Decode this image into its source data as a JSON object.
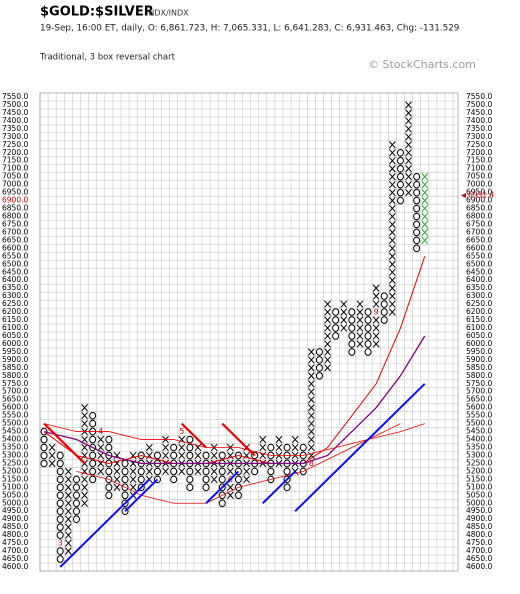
{
  "chart_data": {
    "type": "point-and-figure",
    "title": "$GOLD:$SILVER",
    "exchange": "INDX/INDX",
    "info": "19-Sep, 16:00 ET, daily, O: 6,861.723, H: 7,065.331, L: 6,641.283, C: 6,931.463, Chg: -131.529",
    "subtitle": "Traditional, 3 box reversal chart",
    "copyright": "© StockCharts.com",
    "box_size": 50,
    "x_color": "#000000",
    "o_color": "#000000",
    "marker_color": "#cc0000",
    "grid": true,
    "ylim": [
      4600,
      7550
    ],
    "yticks": [
      {
        "value": 4600,
        "label": "4600.0"
      },
      {
        "value": 4650,
        "label": "4650.0"
      },
      {
        "value": 4700,
        "label": "4700.0"
      },
      {
        "value": 4750,
        "label": "4750.0"
      },
      {
        "value": 4800,
        "label": "4800.0"
      },
      {
        "value": 4850,
        "label": "4850.0"
      },
      {
        "value": 4900,
        "label": "4900.0"
      },
      {
        "value": 4950,
        "label": "4950.0"
      },
      {
        "value": 5000,
        "label": "5000.0"
      },
      {
        "value": 5050,
        "label": "5050.0"
      },
      {
        "value": 5100,
        "label": "5100.0"
      },
      {
        "value": 5150,
        "label": "5150.0"
      },
      {
        "value": 5200,
        "label": "5200.0"
      },
      {
        "value": 5250,
        "label": "5250.0"
      },
      {
        "value": 5300,
        "label": "5300.0"
      },
      {
        "value": 5350,
        "label": "5350.0"
      },
      {
        "value": 5400,
        "label": "5400.0"
      },
      {
        "value": 5450,
        "label": "5450.0"
      },
      {
        "value": 5500,
        "label": "5500.0"
      },
      {
        "value": 5550,
        "label": "5550.0"
      },
      {
        "value": 5600,
        "label": "5600.0"
      },
      {
        "value": 5650,
        "label": "5650.0"
      },
      {
        "value": 5700,
        "label": "5700.0"
      },
      {
        "value": 5750,
        "label": "5750.0"
      },
      {
        "value": 5800,
        "label": "5800.0"
      },
      {
        "value": 5850,
        "label": "5850.0"
      },
      {
        "value": 5900,
        "label": "5900.0"
      },
      {
        "value": 5950,
        "label": "5950.0"
      },
      {
        "value": 6000,
        "label": "6000.0"
      },
      {
        "value": 6050,
        "label": "6050.0"
      },
      {
        "value": 6100,
        "label": "6100.0"
      },
      {
        "value": 6150,
        "label": "6150.0"
      },
      {
        "value": 6200,
        "label": "6200.0"
      },
      {
        "value": 6250,
        "label": "6250.0"
      },
      {
        "value": 6300,
        "label": "6300.0"
      },
      {
        "value": 6350,
        "label": "6350.0"
      },
      {
        "value": 6400,
        "label": "6400.0"
      },
      {
        "value": 6450,
        "label": "6450.0"
      },
      {
        "value": 6500,
        "label": "6500.0"
      },
      {
        "value": 6550,
        "label": "6550.0"
      },
      {
        "value": 6600,
        "label": "6600.0"
      },
      {
        "value": 6650,
        "label": "6650.0"
      },
      {
        "value": 6700,
        "label": "6700.0"
      },
      {
        "value": 6750,
        "label": "6750.0"
      },
      {
        "value": 6800,
        "label": "6800.0"
      },
      {
        "value": 6850,
        "label": "6850.0"
      },
      {
        "value": 6900,
        "label": "6900.0"
      },
      {
        "value": 6950,
        "label": "6950.0"
      },
      {
        "value": 7000,
        "label": "7000.0"
      },
      {
        "value": 7050,
        "label": "7050.0"
      },
      {
        "value": 7100,
        "label": "7100.0"
      },
      {
        "value": 7150,
        "label": "7150.0"
      },
      {
        "value": 7200,
        "label": "7200.0"
      },
      {
        "value": 7250,
        "label": "7250.0"
      },
      {
        "value": 7300,
        "label": "7300.0"
      },
      {
        "value": 7350,
        "label": "7350.0"
      },
      {
        "value": 7400,
        "label": "7400.0"
      },
      {
        "value": 7450,
        "label": "7450.0"
      },
      {
        "value": 7500,
        "label": "7500.0"
      },
      {
        "value": 7550,
        "label": "7550.0"
      }
    ],
    "last_price": {
      "value": 6931.4,
      "label": "6931.4",
      "color": "#cc0000"
    },
    "columns": [
      {
        "type": "O",
        "low": 5250,
        "high": 5450
      },
      {
        "type": "X",
        "low": 5250,
        "high": 5350
      },
      {
        "type": "O",
        "low": 4650,
        "high": 5300,
        "marker": {
          "label": "3",
          "value": 4750
        }
      },
      {
        "type": "X",
        "low": 4700,
        "high": 5200
      },
      {
        "type": "O",
        "low": 4900,
        "high": 5150
      },
      {
        "type": "X",
        "low": 5000,
        "high": 5600
      },
      {
        "type": "O",
        "low": 5150,
        "high": 5550
      },
      {
        "type": "X",
        "low": 5200,
        "high": 5450,
        "marker": {
          "label": "4",
          "value": 5450
        }
      },
      {
        "type": "O",
        "low": 5050,
        "high": 5400
      },
      {
        "type": "X",
        "low": 5100,
        "high": 5300
      },
      {
        "type": "O",
        "low": 4950,
        "high": 5250
      },
      {
        "type": "X",
        "low": 5050,
        "high": 5300
      },
      {
        "type": "O",
        "low": 5100,
        "high": 5300
      },
      {
        "type": "X",
        "low": 5150,
        "high": 5350
      },
      {
        "type": "O",
        "low": 5150,
        "high": 5300
      },
      {
        "type": "X",
        "low": 5200,
        "high": 5400
      },
      {
        "type": "O",
        "low": 5150,
        "high": 5350
      },
      {
        "type": "X",
        "low": 5200,
        "high": 5450,
        "marker": {
          "label": "5",
          "value": 5450
        }
      },
      {
        "type": "O",
        "low": 5100,
        "high": 5400
      },
      {
        "type": "X",
        "low": 5200,
        "high": 5350
      },
      {
        "type": "O",
        "low": 5100,
        "high": 5300
      },
      {
        "type": "X",
        "low": 5150,
        "high": 5350
      },
      {
        "type": "O",
        "low": 5000,
        "high": 5300
      },
      {
        "type": "X",
        "low": 5050,
        "high": 5350,
        "marker": {
          "label": "6",
          "value": 5150
        }
      },
      {
        "type": "O",
        "low": 5050,
        "high": 5300
      },
      {
        "type": "X",
        "low": 5150,
        "high": 5350
      },
      {
        "type": "O",
        "low": 5200,
        "high": 5300
      },
      {
        "type": "X",
        "low": 5250,
        "high": 5400
      },
      {
        "type": "O",
        "low": 5150,
        "high": 5350
      },
      {
        "type": "X",
        "low": 5250,
        "high": 5400
      },
      {
        "type": "O",
        "low": 5100,
        "high": 5350
      },
      {
        "type": "X",
        "low": 5200,
        "high": 5400
      },
      {
        "type": "O",
        "low": 5200,
        "high": 5350
      },
      {
        "type": "X",
        "low": 5250,
        "high": 5950,
        "marker": {
          "label": "8",
          "value": 5250
        }
      },
      {
        "type": "O",
        "low": 5800,
        "high": 5950
      },
      {
        "type": "X",
        "low": 5850,
        "high": 6250
      },
      {
        "type": "O",
        "low": 6050,
        "high": 6200
      },
      {
        "type": "X",
        "low": 6100,
        "high": 6250
      },
      {
        "type": "O",
        "low": 5950,
        "high": 6200
      },
      {
        "type": "X",
        "low": 6000,
        "high": 6250
      },
      {
        "type": "O",
        "low": 5950,
        "high": 6200
      },
      {
        "type": "X",
        "low": 6000,
        "high": 6350,
        "marker": {
          "label": "9",
          "value": 6200
        }
      },
      {
        "type": "O",
        "low": 6150,
        "high": 6300
      },
      {
        "type": "X",
        "low": 6200,
        "high": 7250
      },
      {
        "type": "O",
        "low": 6900,
        "high": 7200
      },
      {
        "type": "X",
        "low": 6950,
        "high": 7500
      },
      {
        "type": "O",
        "low": 6600,
        "high": 7050
      },
      {
        "type": "X",
        "low": 6650,
        "high": 7050,
        "color": "#22aa22"
      }
    ],
    "lines": [
      {
        "color": "#ee0000",
        "width": 1,
        "x": [
          0,
          4,
          8,
          12,
          16,
          20,
          24,
          28,
          32,
          35,
          38,
          41,
          44,
          47
        ],
        "values": [
          5450,
          5300,
          5250,
          5300,
          5250,
          5250,
          5300,
          5250,
          5250,
          5350,
          5550,
          5750,
          6100,
          6550
        ]
      },
      {
        "color": "#800080",
        "width": 1.3,
        "x": [
          0,
          4,
          8,
          12,
          16,
          20,
          24,
          28,
          32,
          35,
          38,
          41,
          44,
          47
        ],
        "values": [
          5450,
          5400,
          5300,
          5250,
          5250,
          5250,
          5250,
          5250,
          5250,
          5300,
          5450,
          5600,
          5800,
          6050
        ]
      },
      {
        "color": "#ee0000",
        "width": 0.8,
        "x": [
          0,
          4,
          8,
          12,
          16,
          20,
          24,
          28,
          32,
          36,
          40,
          44,
          47
        ],
        "values": [
          5500,
          5450,
          5450,
          5400,
          5400,
          5350,
          5350,
          5300,
          5300,
          5350,
          5400,
          5450,
          5500
        ]
      },
      {
        "color": "#ee0000",
        "width": 0.8,
        "x": [
          4,
          8,
          12,
          16,
          20,
          24,
          28,
          32,
          36,
          40,
          44
        ],
        "values": [
          5200,
          5150,
          5050,
          5000,
          5000,
          5100,
          5150,
          5200,
          5300,
          5400,
          5500
        ]
      },
      {
        "color": "#1010ee",
        "width": 2,
        "x": [
          2,
          13
        ],
        "values": [
          4600,
          5150
        ]
      },
      {
        "color": "#1010ee",
        "width": 2,
        "x": [
          10,
          14
        ],
        "values": [
          4950,
          5150
        ]
      },
      {
        "color": "#1010ee",
        "width": 2,
        "x": [
          20,
          24
        ],
        "values": [
          5000,
          5200
        ]
      },
      {
        "color": "#1010ee",
        "width": 2,
        "x": [
          27,
          31
        ],
        "values": [
          5000,
          5200
        ]
      },
      {
        "color": "#1010ee",
        "width": 2,
        "x": [
          31,
          47
        ],
        "values": [
          4950,
          5750
        ]
      },
      {
        "color": "#ee0000",
        "width": 2.2,
        "x": [
          0,
          5
        ],
        "values": [
          5500,
          5250
        ]
      },
      {
        "color": "#ee0000",
        "width": 2.2,
        "x": [
          17,
          20
        ],
        "values": [
          5500,
          5350
        ]
      },
      {
        "color": "#ee0000",
        "width": 2.2,
        "x": [
          22,
          26
        ],
        "values": [
          5500,
          5300
        ]
      }
    ]
  }
}
